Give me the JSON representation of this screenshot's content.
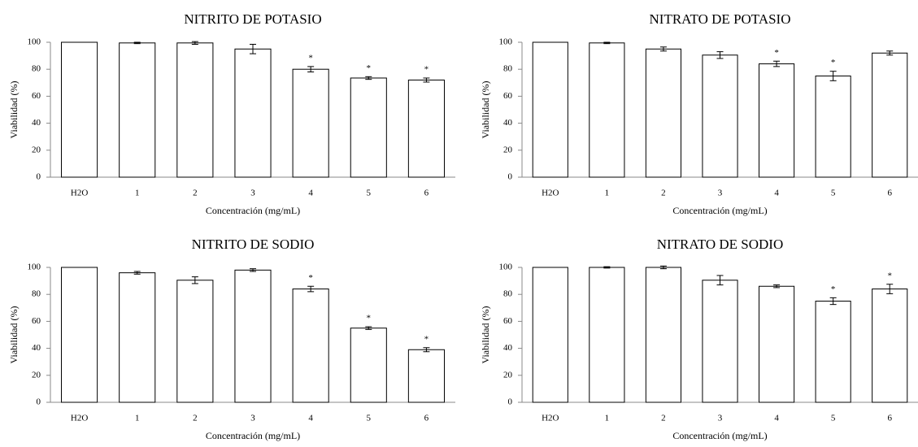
{
  "chart_data": [
    {
      "type": "bar",
      "title": "NITRITO DE POTASIO",
      "y_label": "Viabilidad (%)",
      "x_label": "Concentración (mg/mL)",
      "categories": [
        "H2O",
        "1",
        "2",
        "3",
        "4",
        "5",
        "6"
      ],
      "values": [
        100,
        99.5,
        99.5,
        95,
        80,
        73.5,
        72
      ],
      "errors": [
        0,
        0.5,
        1,
        3.5,
        2,
        1,
        1.5
      ],
      "annotations": [
        {
          "text": "*",
          "category": "4"
        },
        {
          "text": "*",
          "category": "5"
        },
        {
          "text": "*",
          "category": "6"
        }
      ],
      "color": "#ffffff",
      "ylim": [
        0,
        100
      ],
      "yticks": [
        0,
        20,
        40,
        60,
        80,
        100
      ]
    },
    {
      "type": "bar",
      "title": "NITRATO DE POTASIO",
      "y_label": "Viabilidad (%)",
      "x_label": "Concentración (mg/mL)",
      "categories": [
        "H2O",
        "1",
        "2",
        "3",
        "4",
        "5",
        "6"
      ],
      "values": [
        100,
        99.5,
        95,
        90.5,
        84,
        75,
        92
      ],
      "errors": [
        0,
        0.5,
        1.5,
        2.5,
        2,
        3.5,
        1.5
      ],
      "annotations": [
        {
          "text": "*",
          "category": "4"
        },
        {
          "text": "*",
          "category": "5"
        }
      ],
      "color": "#ffffff",
      "ylim": [
        0,
        100
      ],
      "yticks": [
        0,
        20,
        40,
        60,
        80,
        100
      ]
    },
    {
      "type": "bar",
      "title": "NITRITO DE SODIO",
      "y_label": "Viabilidad (%)",
      "x_label": "Concentración (mg/mL)",
      "categories": [
        "H2O",
        "1",
        "2",
        "3",
        "4",
        "5",
        "6"
      ],
      "values": [
        100,
        96,
        90.5,
        98,
        84,
        55,
        39
      ],
      "errors": [
        0,
        1,
        2.5,
        1,
        2,
        1,
        1.5
      ],
      "annotations": [
        {
          "text": "*",
          "category": "4"
        },
        {
          "text": "*",
          "category": "5"
        },
        {
          "text": "*",
          "category": "6"
        }
      ],
      "color": "#ffffff",
      "ylim": [
        0,
        100
      ],
      "yticks": [
        0,
        20,
        40,
        60,
        80,
        100
      ]
    },
    {
      "type": "bar",
      "title": "NITRATO DE SODIO",
      "y_label": "Viabilidad (%)",
      "x_label": "Concentración (mg/mL)",
      "categories": [
        "H2O",
        "1",
        "2",
        "3",
        "4",
        "5",
        "6"
      ],
      "values": [
        100,
        100,
        100,
        90.5,
        86,
        75,
        84
      ],
      "errors": [
        0,
        0.5,
        1,
        3.5,
        1,
        2.5,
        3.5
      ],
      "annotations": [
        {
          "text": "*",
          "category": "5"
        },
        {
          "text": "*",
          "category": "6"
        }
      ],
      "color": "#ffffff",
      "ylim": [
        0,
        100
      ],
      "yticks": [
        0,
        20,
        40,
        60,
        80,
        100
      ]
    }
  ]
}
